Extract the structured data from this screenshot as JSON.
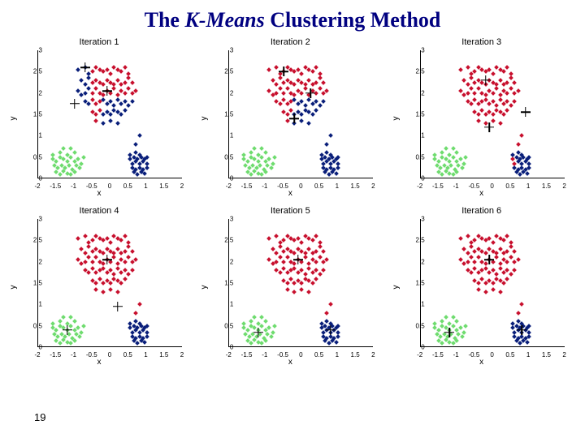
{
  "title_pre": "The ",
  "title_italic": "K-Means",
  "title_post": " Clustering Method",
  "page_number": "19",
  "colors": {
    "red": "#c8102e",
    "blue": "#0a1f7a",
    "green": "#6fdc6f",
    "black": "#000000",
    "title_color": "#000080"
  },
  "axes": {
    "xlim": [
      -2,
      2
    ],
    "ylim": [
      0,
      3
    ],
    "xticks": [
      -2,
      -1.5,
      -1,
      -0.5,
      0,
      0.5,
      1,
      1.5,
      2
    ],
    "yticks": [
      0,
      0.5,
      1,
      1.5,
      2,
      2.5,
      3
    ],
    "xlabel": "x",
    "ylabel": "y"
  },
  "cluster_red": [
    [
      -0.9,
      2.55
    ],
    [
      -0.7,
      2.6
    ],
    [
      -0.6,
      2.45
    ],
    [
      -0.5,
      2.5
    ],
    [
      -0.4,
      2.6
    ],
    [
      -0.3,
      2.55
    ],
    [
      -0.2,
      2.5
    ],
    [
      -0.1,
      2.55
    ],
    [
      0,
      2.45
    ],
    [
      0.1,
      2.6
    ],
    [
      0.2,
      2.55
    ],
    [
      0.3,
      2.5
    ],
    [
      0.4,
      2.6
    ],
    [
      0.5,
      2.45
    ],
    [
      -0.8,
      2.3
    ],
    [
      -0.7,
      2.2
    ],
    [
      -0.6,
      2.35
    ],
    [
      -0.5,
      2.25
    ],
    [
      -0.4,
      2.3
    ],
    [
      -0.3,
      2.25
    ],
    [
      -0.2,
      2.2
    ],
    [
      -0.1,
      2.3
    ],
    [
      0,
      2.25
    ],
    [
      0.1,
      2.2
    ],
    [
      0.2,
      2.3
    ],
    [
      0.3,
      2.2
    ],
    [
      0.4,
      2.25
    ],
    [
      0.5,
      2.35
    ],
    [
      0.6,
      2.25
    ],
    [
      -0.9,
      2.05
    ],
    [
      -0.8,
      1.95
    ],
    [
      -0.7,
      2.0
    ],
    [
      -0.6,
      2.1
    ],
    [
      -0.5,
      2.0
    ],
    [
      -0.4,
      2.1
    ],
    [
      -0.3,
      2.0
    ],
    [
      -0.2,
      1.95
    ],
    [
      -0.1,
      2.05
    ],
    [
      0,
      2.0
    ],
    [
      0.1,
      2.1
    ],
    [
      0.2,
      1.95
    ],
    [
      0.3,
      2.05
    ],
    [
      0.4,
      2.0
    ],
    [
      0.5,
      2.1
    ],
    [
      0.6,
      2.0
    ],
    [
      0.7,
      2.05
    ],
    [
      -0.7,
      1.8
    ],
    [
      -0.6,
      1.75
    ],
    [
      -0.5,
      1.85
    ],
    [
      -0.4,
      1.75
    ],
    [
      -0.3,
      1.8
    ],
    [
      -0.2,
      1.85
    ],
    [
      -0.1,
      1.75
    ],
    [
      0,
      1.8
    ],
    [
      0.1,
      1.7
    ],
    [
      0.2,
      1.85
    ],
    [
      0.3,
      1.75
    ],
    [
      0.4,
      1.8
    ],
    [
      0.5,
      1.7
    ],
    [
      0.6,
      1.8
    ],
    [
      -0.5,
      1.55
    ],
    [
      -0.4,
      1.5
    ],
    [
      -0.3,
      1.6
    ],
    [
      -0.2,
      1.5
    ],
    [
      -0.1,
      1.55
    ],
    [
      0,
      1.5
    ],
    [
      0.1,
      1.6
    ],
    [
      0.2,
      1.55
    ],
    [
      0.3,
      1.5
    ],
    [
      0.4,
      1.6
    ],
    [
      -0.2,
      1.3
    ],
    [
      0,
      1.35
    ],
    [
      0.2,
      1.3
    ],
    [
      -0.4,
      1.35
    ],
    [
      0.8,
      1.0
    ],
    [
      0.7,
      0.8
    ]
  ],
  "cluster_blue": [
    [
      0.55,
      0.45
    ],
    [
      0.6,
      0.35
    ],
    [
      0.65,
      0.5
    ],
    [
      0.7,
      0.4
    ],
    [
      0.75,
      0.45
    ],
    [
      0.8,
      0.35
    ],
    [
      0.85,
      0.5
    ],
    [
      0.9,
      0.4
    ],
    [
      0.95,
      0.45
    ],
    [
      1.0,
      0.35
    ],
    [
      0.6,
      0.25
    ],
    [
      0.7,
      0.2
    ],
    [
      0.8,
      0.25
    ],
    [
      0.9,
      0.2
    ],
    [
      1.0,
      0.25
    ],
    [
      0.65,
      0.15
    ],
    [
      0.75,
      0.1
    ],
    [
      0.85,
      0.15
    ],
    [
      0.95,
      0.12
    ],
    [
      0.55,
      0.55
    ],
    [
      0.8,
      0.55
    ],
    [
      1.0,
      0.5
    ],
    [
      0.7,
      0.6
    ]
  ],
  "cluster_green": [
    [
      -1.6,
      0.45
    ],
    [
      -1.5,
      0.4
    ],
    [
      -1.4,
      0.5
    ],
    [
      -1.3,
      0.45
    ],
    [
      -1.2,
      0.4
    ],
    [
      -1.1,
      0.5
    ],
    [
      -1.0,
      0.4
    ],
    [
      -0.9,
      0.45
    ],
    [
      -1.55,
      0.3
    ],
    [
      -1.45,
      0.25
    ],
    [
      -1.35,
      0.3
    ],
    [
      -1.25,
      0.25
    ],
    [
      -1.15,
      0.3
    ],
    [
      -1.05,
      0.2
    ],
    [
      -0.95,
      0.3
    ],
    [
      -0.85,
      0.25
    ],
    [
      -1.5,
      0.15
    ],
    [
      -1.4,
      0.1
    ],
    [
      -1.3,
      0.18
    ],
    [
      -1.2,
      0.12
    ],
    [
      -1.1,
      0.1
    ],
    [
      -1.0,
      0.15
    ],
    [
      -1.6,
      0.55
    ],
    [
      -1.4,
      0.6
    ],
    [
      -1.2,
      0.55
    ],
    [
      -1.0,
      0.6
    ],
    [
      -1.1,
      0.7
    ],
    [
      -1.3,
      0.7
    ],
    [
      -0.75,
      0.5
    ],
    [
      -0.8,
      0.35
    ]
  ],
  "panels": [
    {
      "title": "Iteration 1",
      "centroids": [
        [
          -1.0,
          1.75
        ],
        [
          -0.1,
          2.05
        ],
        [
          -0.7,
          2.6
        ]
      ],
      "assign": {
        "red_as": "red",
        "blue_shift_to_red": 0,
        "green_as": "green",
        "lowred_to_blue": true
      }
    },
    {
      "title": "Iteration 2",
      "centroids": [
        [
          -0.2,
          1.4
        ],
        [
          0.25,
          2.0
        ],
        [
          -0.5,
          2.5
        ]
      ],
      "assign": {
        "red_as": "red",
        "lowred_to_blue": true
      }
    },
    {
      "title": "Iteration 3",
      "centroids": [
        [
          -0.1,
          1.2
        ],
        [
          0.9,
          1.55
        ],
        [
          -0.2,
          2.3
        ]
      ],
      "assign": {
        "red_as": "red",
        "blue_shift_to_red": 2
      }
    },
    {
      "title": "Iteration 4",
      "centroids": [
        [
          -1.2,
          0.4
        ],
        [
          0.2,
          0.95
        ],
        [
          -0.1,
          2.05
        ]
      ],
      "assign": {
        "red_as": "red"
      }
    },
    {
      "title": "Iteration 5",
      "centroids": [
        [
          -1.2,
          0.35
        ],
        [
          0.8,
          0.4
        ],
        [
          -0.1,
          2.05
        ]
      ],
      "assign": {
        "red_as": "red"
      }
    },
    {
      "title": "Iteration 6",
      "centroids": [
        [
          -1.2,
          0.35
        ],
        [
          0.8,
          0.4
        ],
        [
          -0.1,
          2.05
        ]
      ],
      "assign": {
        "red_as": "red"
      }
    }
  ]
}
